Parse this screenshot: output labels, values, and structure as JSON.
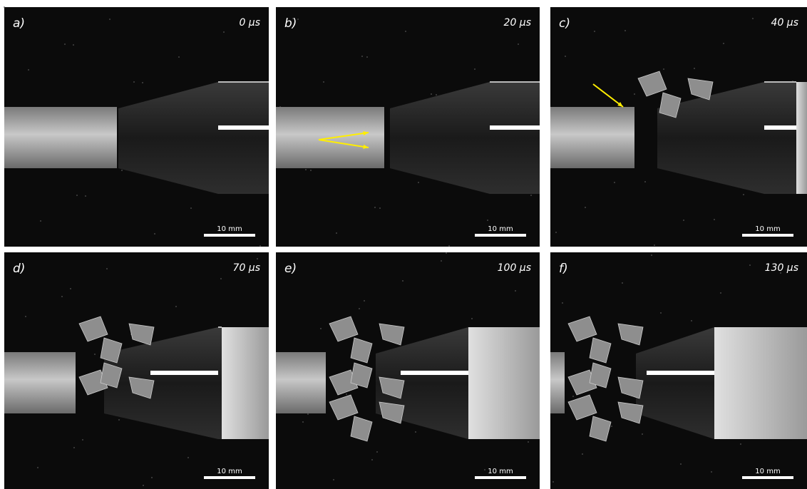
{
  "panels": [
    {
      "label": "a)",
      "time": "0 µs",
      "scale": "10 mm"
    },
    {
      "label": "b)",
      "time": "20 µs",
      "scale": "10 mm"
    },
    {
      "label": "c)",
      "time": "40 µs",
      "scale": "10 mm"
    },
    {
      "label": "d)",
      "time": "70 µs",
      "scale": "10 mm"
    },
    {
      "label": "e)",
      "time": "100 µs",
      "scale": "10 mm"
    },
    {
      "label": "f)",
      "time": "130 µs",
      "scale": "10 mm"
    }
  ]
}
